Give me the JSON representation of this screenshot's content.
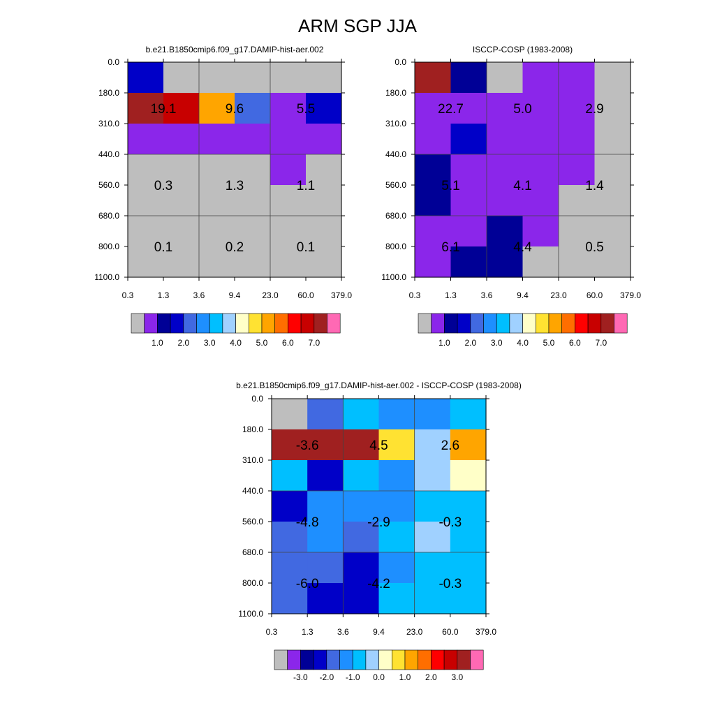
{
  "title": "ARM SGP JJA",
  "colors": {
    "grey": "#bebebe",
    "scale": [
      "#8b26ea",
      "#000096",
      "#0000c8",
      "#4169e1",
      "#1e8fff",
      "#00bfff",
      "#a0d1ff",
      "#ffffc8",
      "#ffe232",
      "#ffa500",
      "#ff6e00",
      "#ff0000",
      "#c80000",
      "#a02020",
      "#ff69b4"
    ]
  },
  "colorbars": {
    "abs_labels": [
      "1.0",
      "2.0",
      "3.0",
      "4.0",
      "5.0",
      "6.0",
      "7.0"
    ],
    "diff_labels": [
      "-3.0",
      "-2.0",
      "-1.0",
      "0.0",
      "1.0",
      "2.0",
      "3.0"
    ]
  },
  "chart_data": [
    {
      "type": "heatmap",
      "title": "b.e21.B1850cmip6.f09_g17.DAMIP-hist-aer.002",
      "x_ticks": [
        "0.3",
        "1.3",
        "3.6",
        "9.4",
        "23.0",
        "60.0",
        "379.0"
      ],
      "y_ticks": [
        "0.0",
        "180.0",
        "310.0",
        "440.0",
        "560.0",
        "680.0",
        "800.0",
        "1100.0"
      ],
      "cells": [
        [
          3,
          0,
          0,
          0,
          0,
          0
        ],
        [
          14,
          13,
          10,
          4,
          1,
          3
        ],
        [
          0.9,
          0.9,
          0.9,
          0.9,
          1,
          1.5
        ],
        [
          0,
          0,
          0,
          0,
          0.5,
          0
        ],
        [
          0,
          0,
          0,
          0,
          0,
          0
        ],
        [
          0,
          0,
          0,
          0,
          0,
          0
        ],
        [
          0,
          0,
          0,
          0,
          0,
          0
        ]
      ],
      "annotations": [
        {
          "row": 1,
          "col": 1,
          "text": "19.1"
        },
        {
          "row": 1,
          "col": 3,
          "text": "9.6"
        },
        {
          "row": 1,
          "col": 5,
          "text": "5.5"
        },
        {
          "row": 4,
          "col": 1,
          "text": "0.3"
        },
        {
          "row": 4,
          "col": 3,
          "text": "1.3"
        },
        {
          "row": 4,
          "col": 5,
          "text": "1.1"
        },
        {
          "row": 6,
          "col": 1,
          "text": "0.1"
        },
        {
          "row": 6,
          "col": 3,
          "text": "0.2"
        },
        {
          "row": 6,
          "col": 5,
          "text": "0.1"
        }
      ]
    },
    {
      "type": "heatmap",
      "title": "ISCCP-COSP (1983-2008)",
      "x_ticks": [
        "0.3",
        "1.3",
        "3.6",
        "9.4",
        "23.0",
        "60.0",
        "379.0"
      ],
      "y_ticks": [
        "0.0",
        "180.0",
        "310.0",
        "440.0",
        "560.0",
        "680.0",
        "800.0",
        "1100.0"
      ],
      "cells": [
        [
          14,
          2,
          0,
          0.9,
          0.9,
          0
        ],
        [
          1.5,
          1.5,
          0.9,
          1.5,
          1.5,
          0
        ],
        [
          1.5,
          3,
          0.9,
          1.5,
          0.9,
          0
        ],
        [
          2,
          0.9,
          0.9,
          1.5,
          0.9,
          0
        ],
        [
          2,
          0.9,
          1.5,
          0.9,
          0,
          0
        ],
        [
          1.5,
          1.5,
          2,
          0.9,
          0,
          0
        ],
        [
          1.5,
          2,
          2,
          0,
          0,
          0
        ]
      ],
      "annotations": [
        {
          "row": 1,
          "col": 1,
          "text": "22.7"
        },
        {
          "row": 1,
          "col": 3,
          "text": "5.0"
        },
        {
          "row": 1,
          "col": 5,
          "text": "2.9"
        },
        {
          "row": 4,
          "col": 1,
          "text": "5.1"
        },
        {
          "row": 4,
          "col": 3,
          "text": "4.1"
        },
        {
          "row": 4,
          "col": 5,
          "text": "1.4"
        },
        {
          "row": 6,
          "col": 1,
          "text": "6.1"
        },
        {
          "row": 6,
          "col": 3,
          "text": "4.4"
        },
        {
          "row": 6,
          "col": 5,
          "text": "0.5"
        }
      ]
    },
    {
      "type": "heatmap",
      "title": "b.e21.B1850cmip6.f09_g17.DAMIP-hist-aer.002 - ISCCP-COSP (1983-2008)",
      "x_ticks": [
        "0.3",
        "1.3",
        "3.6",
        "9.4",
        "23.0",
        "60.0",
        "379.0"
      ],
      "y_ticks": [
        "0.0",
        "180.0",
        "310.0",
        "440.0",
        "560.0",
        "680.0",
        "800.0",
        "1100.0"
      ],
      "cells": [
        [
          0,
          4,
          6,
          5,
          5,
          6
        ],
        [
          14,
          14,
          14,
          9,
          7,
          10
        ],
        [
          6,
          3,
          6,
          5,
          7,
          8
        ],
        [
          3,
          5,
          5,
          5,
          6,
          6
        ],
        [
          4,
          5,
          4,
          6,
          7,
          6
        ],
        [
          4,
          4,
          3,
          5,
          6,
          6
        ],
        [
          4,
          3,
          3,
          6,
          6,
          6
        ]
      ],
      "annotations": [
        {
          "row": 1,
          "col": 1,
          "text": "-3.6"
        },
        {
          "row": 1,
          "col": 3,
          "text": "4.5"
        },
        {
          "row": 1,
          "col": 5,
          "text": "2.6"
        },
        {
          "row": 4,
          "col": 1,
          "text": "-4.8"
        },
        {
          "row": 4,
          "col": 3,
          "text": "-2.9"
        },
        {
          "row": 4,
          "col": 5,
          "text": "-0.3"
        },
        {
          "row": 6,
          "col": 1,
          "text": "-6.0"
        },
        {
          "row": 6,
          "col": 3,
          "text": "-4.2"
        },
        {
          "row": 6,
          "col": 5,
          "text": "-0.3"
        }
      ]
    }
  ]
}
